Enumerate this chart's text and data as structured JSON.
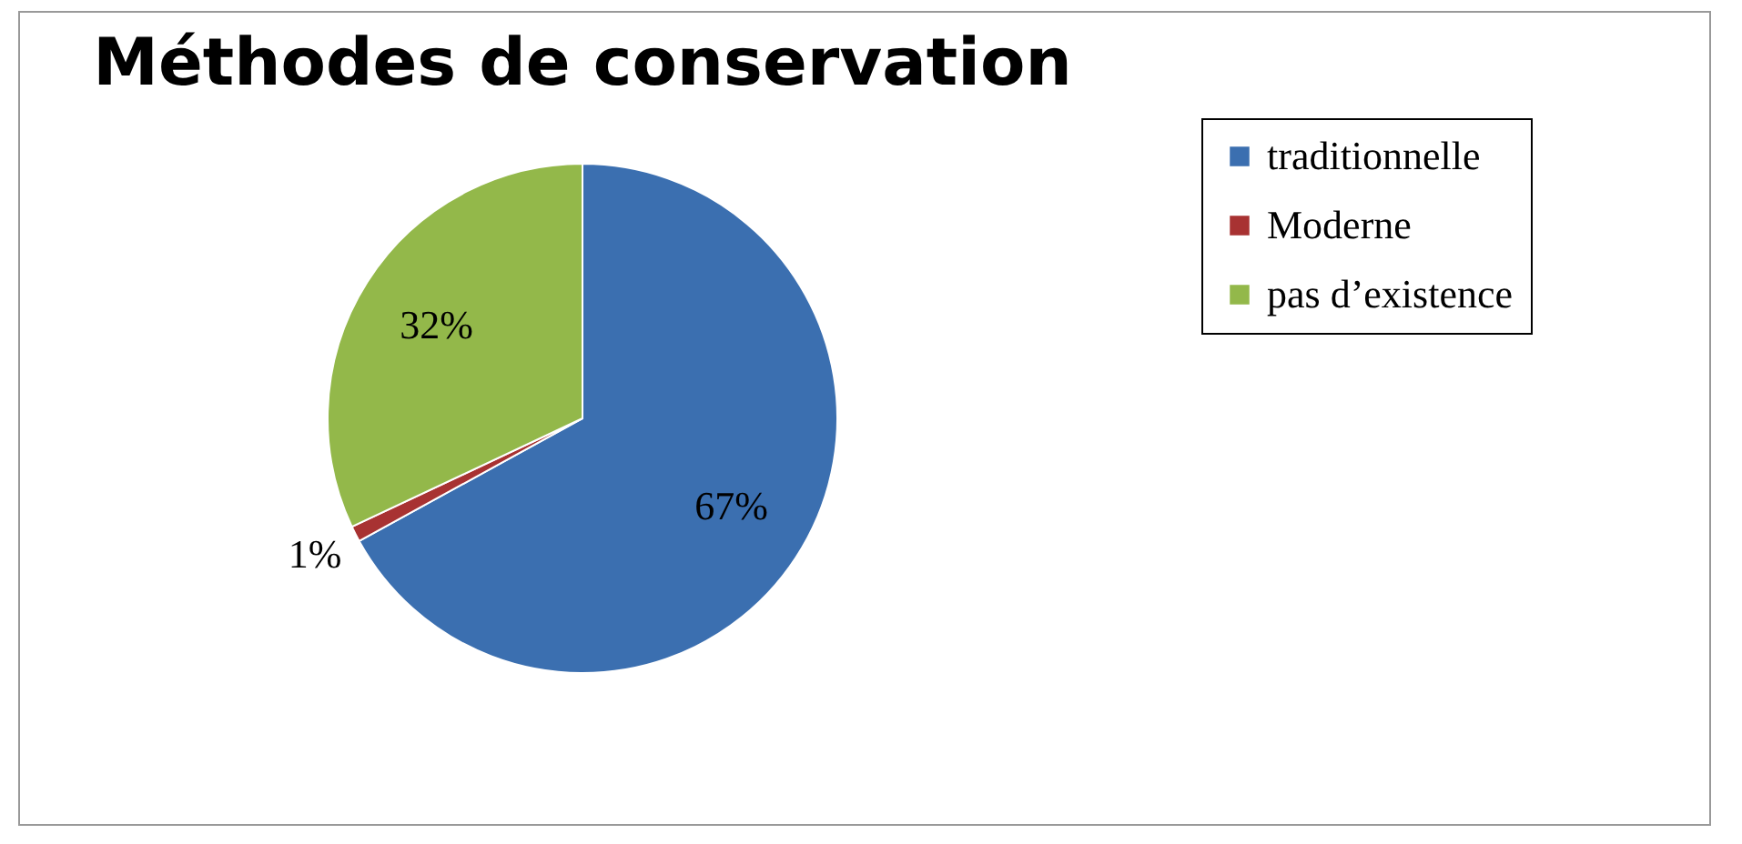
{
  "chart_data": {
    "type": "pie",
    "title": "Méthodes de conservation",
    "categories": [
      "traditionnelle",
      "Moderne",
      "pas d’existence"
    ],
    "values": [
      67,
      1,
      32
    ],
    "colors": [
      "#3b6fb0",
      "#a83232",
      "#93b84a"
    ],
    "value_labels": [
      "67%",
      "1%",
      "32%"
    ],
    "legend": "right"
  }
}
